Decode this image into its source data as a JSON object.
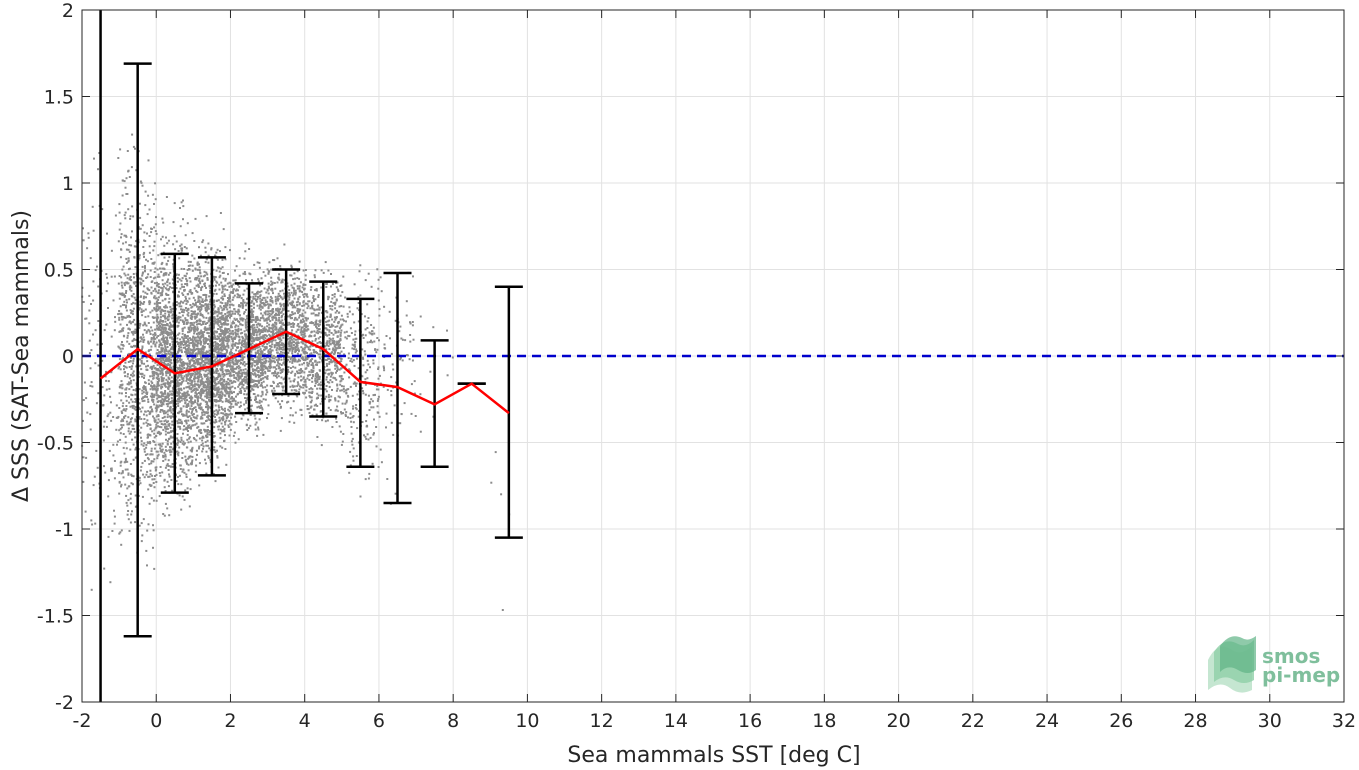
{
  "chart_data": {
    "type": "scatter",
    "title": "",
    "xlabel": "Sea mammals SST [deg C]",
    "ylabel": "Δ SSS (SAT-Sea mammals)",
    "xlim": [
      -2,
      32
    ],
    "ylim": [
      -2,
      2
    ],
    "xticks": [
      -2,
      0,
      2,
      4,
      6,
      8,
      10,
      12,
      14,
      16,
      18,
      20,
      22,
      24,
      26,
      28,
      30,
      32
    ],
    "yticks": [
      -2,
      -1.5,
      -1,
      -0.5,
      0,
      0.5,
      1,
      1.5,
      2
    ],
    "grid": true,
    "legend": "none",
    "reference_line": {
      "y": 0,
      "style": "dashed",
      "color": "#0000cc"
    },
    "scatter_density": [
      {
        "x_range": [
          -2,
          -1
        ],
        "y_mean": -0.1,
        "y_spread": 0.9,
        "count": 150
      },
      {
        "x_range": [
          -1,
          0
        ],
        "y_mean": 0.0,
        "y_spread": 0.8,
        "count": 900
      },
      {
        "x_range": [
          0,
          1
        ],
        "y_mean": -0.05,
        "y_spread": 0.55,
        "count": 1500
      },
      {
        "x_range": [
          1,
          2
        ],
        "y_mean": 0.0,
        "y_spread": 0.45,
        "count": 1500
      },
      {
        "x_range": [
          2,
          3
        ],
        "y_mean": 0.05,
        "y_spread": 0.35,
        "count": 1000
      },
      {
        "x_range": [
          3,
          4
        ],
        "y_mean": 0.12,
        "y_spread": 0.32,
        "count": 800
      },
      {
        "x_range": [
          4,
          5
        ],
        "y_mean": 0.05,
        "y_spread": 0.35,
        "count": 600
      },
      {
        "x_range": [
          5,
          6
        ],
        "y_mean": -0.1,
        "y_spread": 0.45,
        "count": 250
      },
      {
        "x_range": [
          6,
          7
        ],
        "y_mean": -0.1,
        "y_spread": 0.55,
        "count": 80
      },
      {
        "x_range": [
          7,
          8
        ],
        "y_mean": -0.3,
        "y_spread": 0.4,
        "count": 10
      },
      {
        "x_range": [
          9,
          10
        ],
        "y_mean": -0.5,
        "y_spread": 0.7,
        "count": 6
      }
    ],
    "series": [
      {
        "type": "line",
        "color": "#ff0000",
        "x": [
          -1.5,
          -0.5,
          0.5,
          1.5,
          2.5,
          3.5,
          4.5,
          5.5,
          6.5,
          7.5,
          8.5,
          9.5
        ],
        "y": [
          -0.13,
          0.04,
          -0.1,
          -0.06,
          0.04,
          0.14,
          0.04,
          -0.15,
          -0.18,
          -0.28,
          -0.16,
          -0.33
        ]
      },
      {
        "type": "errorbar",
        "color": "#000000",
        "x": [
          -1.5,
          -0.5,
          0.5,
          1.5,
          2.5,
          3.5,
          4.5,
          5.5,
          6.5,
          7.5,
          8.5,
          9.5
        ],
        "upper": [
          2.3,
          1.69,
          0.59,
          0.57,
          0.42,
          0.5,
          0.43,
          0.33,
          0.48,
          0.09,
          -0.16,
          0.4
        ],
        "lower": [
          -2.3,
          -1.62,
          -0.79,
          -0.69,
          -0.33,
          -0.22,
          -0.35,
          -0.64,
          -0.85,
          -0.64,
          -0.16,
          -1.05
        ]
      }
    ]
  },
  "logo": {
    "line1": "smos",
    "line2": "pi-mep"
  }
}
